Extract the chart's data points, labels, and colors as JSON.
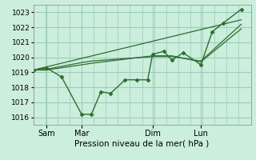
{
  "background_color": "#cceedd",
  "grid_color": "#99ccbb",
  "line_color": "#2d6e2d",
  "marker_color": "#2d6e2d",
  "xlabel": "Pression niveau de la mer( hPa )",
  "ylim": [
    1015.5,
    1023.5
  ],
  "yticks": [
    1016,
    1017,
    1018,
    1019,
    1020,
    1021,
    1022,
    1023
  ],
  "xtick_labels": [
    "Sam",
    "Mar",
    "Dim",
    "Lun"
  ],
  "xtick_positions": [
    16,
    60,
    148,
    208
  ],
  "xlim": [
    0,
    270
  ],
  "vline_positions": [
    16,
    60,
    148,
    208
  ],
  "series": [
    {
      "x": [
        0,
        16,
        35,
        60,
        72,
        84,
        96,
        114,
        128,
        142,
        148,
        162,
        172,
        186,
        208,
        222,
        236,
        258
      ],
      "y": [
        1019.15,
        1019.3,
        1018.7,
        1016.2,
        1016.2,
        1017.7,
        1017.6,
        1018.5,
        1018.5,
        1018.5,
        1020.2,
        1020.4,
        1019.8,
        1020.3,
        1019.5,
        1021.7,
        1022.3,
        1023.2
      ],
      "marker": "D",
      "markersize": 2.5,
      "linewidth": 1.0
    },
    {
      "x": [
        0,
        16,
        60,
        72,
        148,
        172,
        208,
        258
      ],
      "y": [
        1019.15,
        1019.15,
        1019.5,
        1019.6,
        1020.1,
        1020.1,
        1019.7,
        1021.9
      ],
      "marker": null,
      "markersize": 0,
      "linewidth": 0.9
    },
    {
      "x": [
        0,
        16,
        60,
        72,
        148,
        172,
        208,
        258
      ],
      "y": [
        1019.15,
        1019.2,
        1019.65,
        1019.75,
        1020.05,
        1020.05,
        1019.75,
        1022.2
      ],
      "marker": null,
      "markersize": 0,
      "linewidth": 0.9
    },
    {
      "x": [
        0,
        258
      ],
      "y": [
        1019.15,
        1022.5
      ],
      "marker": null,
      "markersize": 0,
      "linewidth": 0.9
    }
  ]
}
